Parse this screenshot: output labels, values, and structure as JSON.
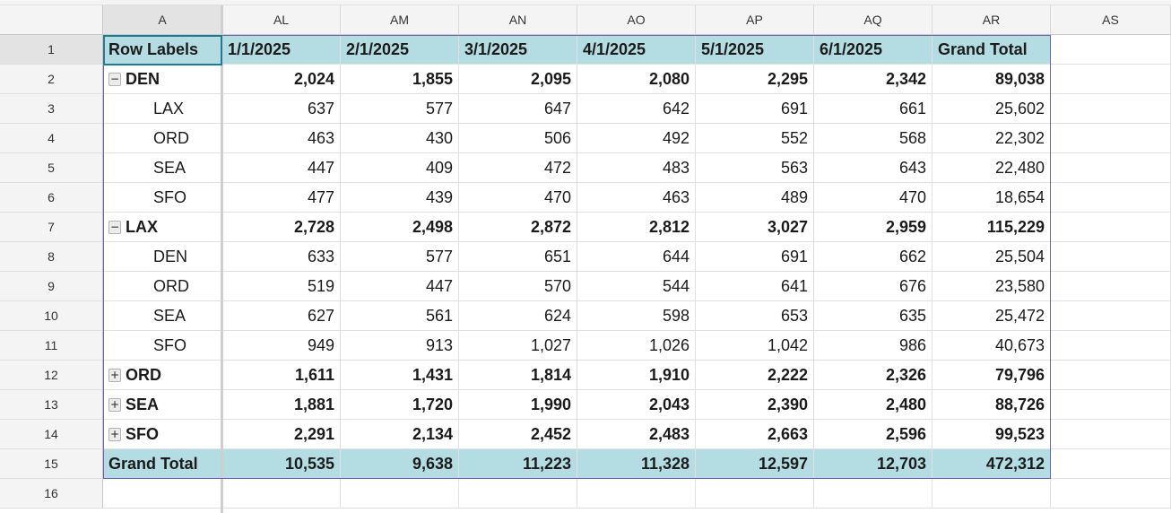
{
  "columns": [
    "A",
    "AL",
    "AM",
    "AN",
    "AO",
    "AP",
    "AQ",
    "AR",
    "AS"
  ],
  "selected_column": "A",
  "selected_row": "1",
  "row_numbers": [
    "1",
    "2",
    "3",
    "4",
    "5",
    "6",
    "7",
    "8",
    "9",
    "10",
    "11",
    "12",
    "13",
    "14",
    "15",
    "16"
  ],
  "pivot": {
    "header": [
      "Row Labels",
      "1/1/2025",
      "2/1/2025",
      "3/1/2025",
      "4/1/2025",
      "5/1/2025",
      "6/1/2025",
      "Grand Total"
    ],
    "rows": [
      {
        "label": "DEN",
        "level": 0,
        "toggle": "−",
        "values": [
          "2,024",
          "1,855",
          "2,095",
          "2,080",
          "2,295",
          "2,342",
          "89,038"
        ]
      },
      {
        "label": "LAX",
        "level": 1,
        "values": [
          "637",
          "577",
          "647",
          "642",
          "691",
          "661",
          "25,602"
        ]
      },
      {
        "label": "ORD",
        "level": 1,
        "values": [
          "463",
          "430",
          "506",
          "492",
          "552",
          "568",
          "22,302"
        ]
      },
      {
        "label": "SEA",
        "level": 1,
        "values": [
          "447",
          "409",
          "472",
          "483",
          "563",
          "643",
          "22,480"
        ]
      },
      {
        "label": "SFO",
        "level": 1,
        "values": [
          "477",
          "439",
          "470",
          "463",
          "489",
          "470",
          "18,654"
        ]
      },
      {
        "label": "LAX",
        "level": 0,
        "toggle": "−",
        "values": [
          "2,728",
          "2,498",
          "2,872",
          "2,812",
          "3,027",
          "2,959",
          "115,229"
        ]
      },
      {
        "label": "DEN",
        "level": 1,
        "values": [
          "633",
          "577",
          "651",
          "644",
          "691",
          "662",
          "25,504"
        ]
      },
      {
        "label": "ORD",
        "level": 1,
        "values": [
          "519",
          "447",
          "570",
          "544",
          "641",
          "676",
          "23,580"
        ]
      },
      {
        "label": "SEA",
        "level": 1,
        "values": [
          "627",
          "561",
          "624",
          "598",
          "653",
          "635",
          "25,472"
        ]
      },
      {
        "label": "SFO",
        "level": 1,
        "values": [
          "949",
          "913",
          "1,027",
          "1,026",
          "1,042",
          "986",
          "40,673"
        ]
      },
      {
        "label": "ORD",
        "level": 0,
        "toggle": "+",
        "values": [
          "1,611",
          "1,431",
          "1,814",
          "1,910",
          "2,222",
          "2,326",
          "79,796"
        ]
      },
      {
        "label": "SEA",
        "level": 0,
        "toggle": "+",
        "values": [
          "1,881",
          "1,720",
          "1,990",
          "2,043",
          "2,390",
          "2,480",
          "88,726"
        ]
      },
      {
        "label": "SFO",
        "level": 0,
        "toggle": "+",
        "values": [
          "2,291",
          "2,134",
          "2,452",
          "2,483",
          "2,663",
          "2,596",
          "99,523"
        ]
      }
    ],
    "grand_total": {
      "label": "Grand Total",
      "values": [
        "10,535",
        "9,638",
        "11,223",
        "11,328",
        "12,597",
        "12,703",
        "472,312"
      ]
    }
  },
  "colors": {
    "pivot_header_fill": "#b4dde3",
    "pivot_border": "#6f5fb0",
    "active_cell_border": "#1f7b8f"
  }
}
